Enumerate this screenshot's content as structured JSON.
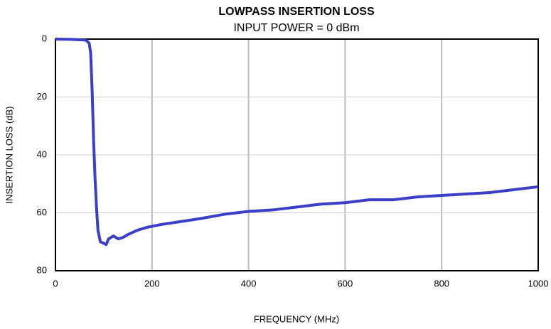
{
  "chart_data": {
    "type": "line",
    "title": "LOWPASS INSERTION LOSS",
    "subtitle": "INPUT POWER = 0 dBm",
    "x_label": "FREQUENCY (MHz)",
    "y_label": "INSERTION LOSS (dB)",
    "xlim": [
      0,
      1000
    ],
    "xticks": [
      0,
      200,
      400,
      600,
      800,
      1000
    ],
    "ylim": [
      0,
      80
    ],
    "yticks": [
      0,
      20,
      40,
      60,
      80
    ],
    "y_reversed": true,
    "grid": true,
    "series": [
      {
        "color": "#3a3ec8",
        "x": [
          0,
          30,
          60,
          65,
          70,
          73,
          76,
          79,
          82,
          85,
          88,
          93,
          100,
          105,
          110,
          120,
          130,
          140,
          150,
          170,
          190,
          220,
          260,
          300,
          350,
          400,
          450,
          500,
          550,
          600,
          650,
          700,
          750,
          800,
          850,
          900,
          950,
          1000
        ],
        "values": [
          0,
          0.1,
          0.3,
          0.6,
          1.5,
          5,
          18,
          35,
          48,
          58,
          66,
          70,
          70.5,
          71,
          69,
          68,
          69,
          68.5,
          67.5,
          66,
          65,
          64,
          63,
          62,
          60.5,
          59.5,
          59,
          58,
          57,
          56.5,
          55.5,
          55.5,
          54.5,
          54,
          53.5,
          53,
          52,
          51
        ]
      }
    ]
  }
}
